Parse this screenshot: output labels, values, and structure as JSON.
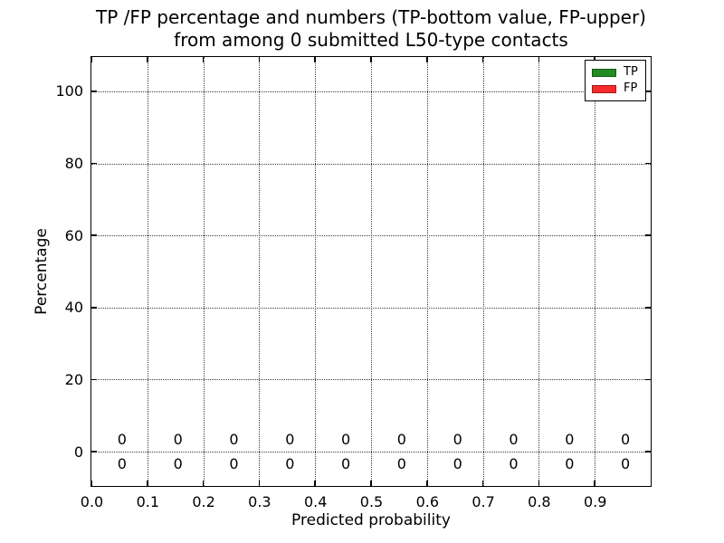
{
  "figure": {
    "title_line1": "TP /FP percentage and numbers (TP-bottom value, FP-upper)",
    "title_line2": "from among 0 submitted L50-type contacts"
  },
  "chart_data": {
    "type": "bar",
    "title": "TP /FP percentage and numbers (TP-bottom value, FP-upper) from among 0 submitted L50-type contacts",
    "xlabel": "Predicted probability",
    "ylabel": "Percentage",
    "xlim": [
      0.0,
      1.0
    ],
    "ylim": [
      -9.5,
      109.5
    ],
    "grid": true,
    "grid_style": "dotted",
    "x_ticks": [
      0.0,
      0.1,
      0.2,
      0.3,
      0.4,
      0.5,
      0.6,
      0.7,
      0.8,
      0.9
    ],
    "x_tick_labels": [
      "0.0",
      "0.1",
      "0.2",
      "0.3",
      "0.4",
      "0.5",
      "0.6",
      "0.7",
      "0.8",
      "0.9"
    ],
    "y_ticks": [
      0,
      20,
      40,
      60,
      80,
      100
    ],
    "y_tick_labels": [
      "0",
      "20",
      "40",
      "60",
      "80",
      "100"
    ],
    "bin_centers": [
      0.05,
      0.15,
      0.25,
      0.35,
      0.45,
      0.55,
      0.65,
      0.75,
      0.85,
      0.95
    ],
    "series": [
      {
        "name": "TP",
        "color": "#228b22",
        "values": [
          0,
          0,
          0,
          0,
          0,
          0,
          0,
          0,
          0,
          0
        ]
      },
      {
        "name": "FP",
        "color": "#f82b2b",
        "values": [
          0,
          0,
          0,
          0,
          0,
          0,
          0,
          0,
          0,
          0
        ]
      }
    ],
    "annotations": {
      "upper_values": [
        "0",
        "0",
        "0",
        "0",
        "0",
        "0",
        "0",
        "0",
        "0",
        "0"
      ],
      "lower_values": [
        "0",
        "0",
        "0",
        "0",
        "0",
        "0",
        "0",
        "0",
        "0",
        "0"
      ]
    },
    "legend": {
      "position": "upper right",
      "entries": [
        {
          "label": "TP",
          "color": "#228b22"
        },
        {
          "label": "FP",
          "color": "#f82b2b"
        }
      ]
    }
  }
}
